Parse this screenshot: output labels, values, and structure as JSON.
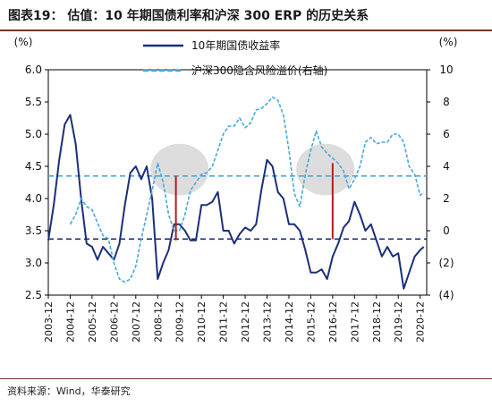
{
  "title": "图表19：    估值：10 年期国债利率和沪深 300 ERP 的历史关系",
  "source": "资料来源：Wind，华泰研究",
  "chart_data": {
    "type": "line",
    "left_axis": {
      "label": "(%)",
      "min": 2.5,
      "max": 6.0,
      "ticks": [
        "2.5",
        "3.0",
        "3.5",
        "4.0",
        "4.5",
        "5.0",
        "5.5",
        "6.0"
      ]
    },
    "right_axis": {
      "label": "(%)",
      "min": -4,
      "max": 10,
      "ticks": [
        "(4)",
        "(2)",
        "0",
        "2",
        "4",
        "6",
        "8",
        "10"
      ]
    },
    "x_ticks": [
      "2003-12",
      "2004-12",
      "2005-12",
      "2006-12",
      "2007-12",
      "2008-12",
      "2009-12",
      "2010-12",
      "2011-12",
      "2012-12",
      "2013-12",
      "2014-12",
      "2015-12",
      "2016-12",
      "2017-12",
      "2018-12",
      "2019-12",
      "2020-12"
    ],
    "legend_position": "top-center",
    "colors": {
      "bond": "#1b2f7a",
      "erp": "#4aa8dc",
      "marker": "#b11e1e",
      "ellipse": "#d9d9d9"
    },
    "series": [
      {
        "name": "10年期国债收益率",
        "axis": "left",
        "style": "solid",
        "points": [
          [
            "2003-12",
            3.35
          ],
          [
            "2004-03",
            3.9
          ],
          [
            "2004-06",
            4.6
          ],
          [
            "2004-09",
            5.15
          ],
          [
            "2004-12",
            5.3
          ],
          [
            "2005-03",
            4.85
          ],
          [
            "2005-06",
            4.0
          ],
          [
            "2005-09",
            3.3
          ],
          [
            "2005-12",
            3.25
          ],
          [
            "2006-03",
            3.05
          ],
          [
            "2006-06",
            3.25
          ],
          [
            "2006-09",
            3.15
          ],
          [
            "2006-12",
            3.05
          ],
          [
            "2007-03",
            3.3
          ],
          [
            "2007-06",
            3.9
          ],
          [
            "2007-09",
            4.4
          ],
          [
            "2007-12",
            4.5
          ],
          [
            "2008-03",
            4.3
          ],
          [
            "2008-06",
            4.5
          ],
          [
            "2008-09",
            4.0
          ],
          [
            "2008-12",
            2.75
          ],
          [
            "2009-03",
            3.0
          ],
          [
            "2009-06",
            3.2
          ],
          [
            "2009-09",
            3.6
          ],
          [
            "2009-12",
            3.6
          ],
          [
            "2010-03",
            3.5
          ],
          [
            "2010-06",
            3.35
          ],
          [
            "2010-09",
            3.35
          ],
          [
            "2010-12",
            3.9
          ],
          [
            "2011-03",
            3.9
          ],
          [
            "2011-06",
            3.95
          ],
          [
            "2011-09",
            4.1
          ],
          [
            "2011-12",
            3.5
          ],
          [
            "2012-03",
            3.5
          ],
          [
            "2012-06",
            3.3
          ],
          [
            "2012-09",
            3.45
          ],
          [
            "2012-12",
            3.55
          ],
          [
            "2013-03",
            3.5
          ],
          [
            "2013-06",
            3.6
          ],
          [
            "2013-09",
            4.15
          ],
          [
            "2013-12",
            4.6
          ],
          [
            "2014-03",
            4.5
          ],
          [
            "2014-06",
            4.1
          ],
          [
            "2014-09",
            4.0
          ],
          [
            "2014-12",
            3.6
          ],
          [
            "2015-03",
            3.6
          ],
          [
            "2015-06",
            3.5
          ],
          [
            "2015-09",
            3.2
          ],
          [
            "2015-12",
            2.85
          ],
          [
            "2016-03",
            2.85
          ],
          [
            "2016-06",
            2.9
          ],
          [
            "2016-09",
            2.75
          ],
          [
            "2016-12",
            3.1
          ],
          [
            "2017-03",
            3.3
          ],
          [
            "2017-06",
            3.55
          ],
          [
            "2017-09",
            3.65
          ],
          [
            "2017-12",
            3.95
          ],
          [
            "2018-03",
            3.75
          ],
          [
            "2018-06",
            3.5
          ],
          [
            "2018-09",
            3.6
          ],
          [
            "2018-12",
            3.35
          ],
          [
            "2019-03",
            3.1
          ],
          [
            "2019-06",
            3.25
          ],
          [
            "2019-09",
            3.1
          ],
          [
            "2019-12",
            3.15
          ],
          [
            "2020-03",
            2.6
          ],
          [
            "2020-06",
            2.85
          ],
          [
            "2020-09",
            3.1
          ],
          [
            "2020-12",
            3.2
          ],
          [
            "2021-02",
            3.25
          ]
        ]
      },
      {
        "name": "沪深300隐含风险溢价(右轴)",
        "axis": "right",
        "style": "dashed",
        "points": [
          [
            "2004-12",
            0.4
          ],
          [
            "2005-03",
            1.0
          ],
          [
            "2005-06",
            2.0
          ],
          [
            "2005-09",
            1.5
          ],
          [
            "2005-12",
            1.3
          ],
          [
            "2006-03",
            0.5
          ],
          [
            "2006-06",
            -0.3
          ],
          [
            "2006-09",
            -0.5
          ],
          [
            "2006-12",
            -2.0
          ],
          [
            "2007-03",
            -3.0
          ],
          [
            "2007-06",
            -3.2
          ],
          [
            "2007-09",
            -3.0
          ],
          [
            "2007-12",
            -2.2
          ],
          [
            "2008-03",
            -0.5
          ],
          [
            "2008-06",
            1.0
          ],
          [
            "2008-09",
            2.5
          ],
          [
            "2008-12",
            4.2
          ],
          [
            "2009-03",
            3.0
          ],
          [
            "2009-06",
            1.0
          ],
          [
            "2009-09",
            0.0
          ],
          [
            "2009-12",
            0.0
          ],
          [
            "2010-03",
            1.0
          ],
          [
            "2010-06",
            2.5
          ],
          [
            "2010-09",
            3.0
          ],
          [
            "2010-12",
            3.5
          ],
          [
            "2011-03",
            3.6
          ],
          [
            "2011-06",
            4.0
          ],
          [
            "2011-09",
            5.0
          ],
          [
            "2011-12",
            6.0
          ],
          [
            "2012-03",
            6.5
          ],
          [
            "2012-06",
            6.5
          ],
          [
            "2012-09",
            7.0
          ],
          [
            "2012-12",
            6.4
          ],
          [
            "2013-03",
            6.7
          ],
          [
            "2013-06",
            7.5
          ],
          [
            "2013-09",
            7.6
          ],
          [
            "2013-12",
            7.9
          ],
          [
            "2014-03",
            8.3
          ],
          [
            "2014-06",
            8.1
          ],
          [
            "2014-09",
            7.2
          ],
          [
            "2014-12",
            5.0
          ],
          [
            "2015-03",
            2.3
          ],
          [
            "2015-06",
            1.5
          ],
          [
            "2015-09",
            3.5
          ],
          [
            "2015-12",
            5.0
          ],
          [
            "2016-03",
            6.2
          ],
          [
            "2016-06",
            5.2
          ],
          [
            "2016-09",
            4.8
          ],
          [
            "2016-12",
            4.5
          ],
          [
            "2017-03",
            4.2
          ],
          [
            "2017-06",
            3.7
          ],
          [
            "2017-09",
            2.6
          ],
          [
            "2017-12",
            3.2
          ],
          [
            "2018-03",
            4.0
          ],
          [
            "2018-06",
            5.5
          ],
          [
            "2018-09",
            5.8
          ],
          [
            "2018-12",
            5.4
          ],
          [
            "2019-03",
            5.5
          ],
          [
            "2019-06",
            5.5
          ],
          [
            "2019-09",
            6.0
          ],
          [
            "2019-12",
            6.0
          ],
          [
            "2020-03",
            5.5
          ],
          [
            "2020-06",
            4.0
          ],
          [
            "2020-09",
            3.5
          ],
          [
            "2020-12",
            2.2
          ],
          [
            "2021-02",
            2.4
          ]
        ]
      }
    ],
    "reference_lines": [
      {
        "axis": "left",
        "value": 3.37,
        "color": "#1b2f7a",
        "style": "dashed"
      },
      {
        "axis": "left",
        "value": 4.35,
        "color": "#4aa8dc",
        "style": "dashed"
      }
    ],
    "markers": [
      {
        "date": "2009-10",
        "from": 3.35,
        "to": 4.35
      },
      {
        "date": "2016-12",
        "from": 3.37,
        "to": 4.55
      }
    ],
    "highlights": [
      {
        "center_date": "2009-12",
        "center": 4.45,
        "half_width_months": 16,
        "half_height": 0.4
      },
      {
        "center_date": "2016-08",
        "center": 4.45,
        "half_width_months": 16,
        "half_height": 0.4
      }
    ]
  }
}
